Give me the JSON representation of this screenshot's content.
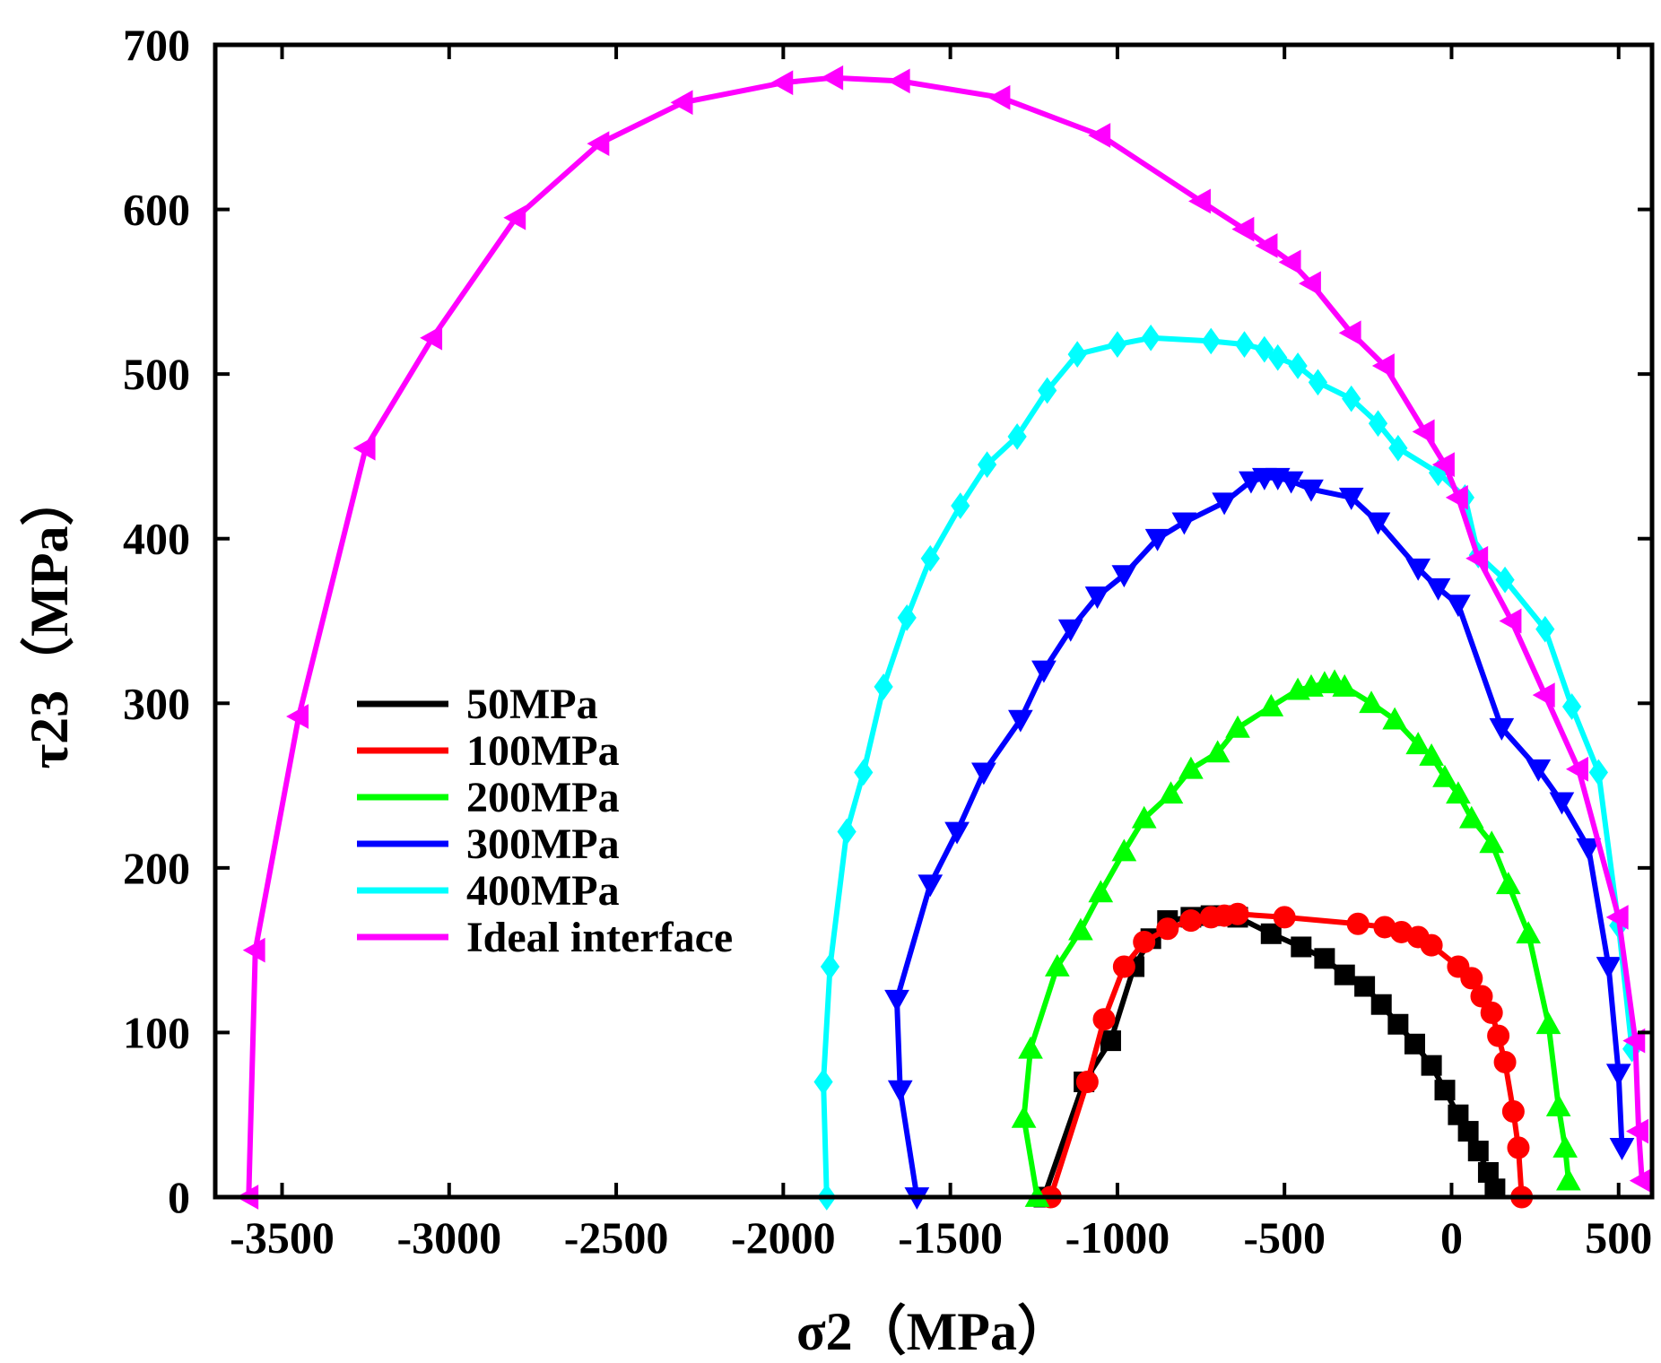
{
  "chart_data": {
    "type": "line",
    "title": "",
    "xlabel": "σ2（MPa）",
    "ylabel": "τ23（MPa）",
    "xlim": [
      -3700,
      600
    ],
    "ylim": [
      0,
      700
    ],
    "grid": false,
    "legend_position": "left-middle",
    "xticks": [
      {
        "value": -3500,
        "label": "-3500"
      },
      {
        "value": -3000,
        "label": "-3000"
      },
      {
        "value": -2500,
        "label": "-2500"
      },
      {
        "value": -2000,
        "label": "-2000"
      },
      {
        "value": -1500,
        "label": "-1500"
      },
      {
        "value": -1000,
        "label": "-1000"
      },
      {
        "value": -500,
        "label": "-500"
      },
      {
        "value": 0,
        "label": "0"
      },
      {
        "value": 500,
        "label": "500"
      }
    ],
    "yticks": [
      {
        "value": 0,
        "label": "0"
      },
      {
        "value": 100,
        "label": "100"
      },
      {
        "value": 200,
        "label": "200"
      },
      {
        "value": 300,
        "label": "300"
      },
      {
        "value": 400,
        "label": "400"
      },
      {
        "value": 500,
        "label": "500"
      },
      {
        "value": 600,
        "label": "600"
      },
      {
        "value": 700,
        "label": "700"
      }
    ],
    "series": [
      {
        "name": "50MPa",
        "color": "#000000",
        "marker": "square",
        "x": [
          -1220,
          -1100,
          -1020,
          -950,
          -900,
          -850,
          -780,
          -720,
          -680,
          -640,
          -540,
          -450,
          -380,
          -320,
          -260,
          -210,
          -160,
          -110,
          -60,
          -20,
          20,
          50,
          80,
          110,
          130
        ],
        "y": [
          0,
          70,
          95,
          140,
          157,
          168,
          170,
          171,
          171,
          170,
          160,
          152,
          145,
          135,
          128,
          117,
          105,
          93,
          80,
          65,
          50,
          40,
          28,
          15,
          5
        ]
      },
      {
        "name": "100MPa",
        "color": "#ff0000",
        "marker": "circle",
        "x": [
          -1200,
          -1090,
          -1040,
          -980,
          -920,
          -850,
          -780,
          -720,
          -680,
          -640,
          -500,
          -280,
          -200,
          -150,
          -100,
          -60,
          20,
          60,
          90,
          120,
          140,
          160,
          185,
          200,
          210
        ],
        "y": [
          0,
          70,
          108,
          140,
          155,
          163,
          168,
          170,
          171,
          172,
          170,
          166,
          164,
          161,
          158,
          153,
          140,
          133,
          122,
          112,
          98,
          82,
          52,
          30,
          0
        ]
      },
      {
        "name": "200MPa",
        "color": "#00ff00",
        "marker": "up-triangle",
        "x": [
          -1240,
          -1280,
          -1260,
          -1180,
          -1110,
          -1050,
          -980,
          -920,
          -840,
          -780,
          -700,
          -640,
          -540,
          -460,
          -420,
          -380,
          -350,
          -320,
          -240,
          -170,
          -100,
          -60,
          -20,
          20,
          60,
          120,
          170,
          230,
          290,
          320,
          340,
          350
        ],
        "y": [
          0,
          48,
          90,
          140,
          162,
          185,
          210,
          230,
          245,
          260,
          270,
          285,
          298,
          308,
          310,
          312,
          313,
          310,
          300,
          290,
          275,
          268,
          255,
          245,
          230,
          215,
          190,
          160,
          105,
          55,
          30,
          10
        ]
      },
      {
        "name": "300MPa",
        "color": "#0000ff",
        "marker": "down-triangle",
        "x": [
          -1600,
          -1650,
          -1660,
          -1560,
          -1480,
          -1400,
          -1290,
          -1220,
          -1140,
          -1060,
          -980,
          -880,
          -800,
          -680,
          -600,
          -560,
          -520,
          -480,
          -420,
          -300,
          -220,
          -100,
          -40,
          20,
          150,
          260,
          330,
          410,
          470,
          500,
          510
        ],
        "y": [
          0,
          65,
          120,
          190,
          222,
          258,
          290,
          320,
          345,
          365,
          378,
          400,
          410,
          422,
          435,
          437,
          437,
          435,
          430,
          425,
          410,
          382,
          370,
          360,
          285,
          260,
          240,
          212,
          140,
          75,
          30
        ]
      },
      {
        "name": "400MPa",
        "color": "#00ffff",
        "marker": "diamond",
        "x": [
          -1870,
          -1880,
          -1860,
          -1810,
          -1760,
          -1700,
          -1630,
          -1560,
          -1470,
          -1390,
          -1300,
          -1210,
          -1120,
          -1000,
          -900,
          -720,
          -620,
          -560,
          -520,
          -460,
          -400,
          -300,
          -220,
          -160,
          -40,
          40,
          80,
          160,
          280,
          360,
          440,
          500,
          540
        ],
        "y": [
          0,
          70,
          140,
          222,
          258,
          310,
          352,
          388,
          420,
          445,
          462,
          490,
          512,
          518,
          522,
          520,
          518,
          515,
          510,
          505,
          495,
          485,
          470,
          455,
          440,
          425,
          390,
          375,
          345,
          298,
          258,
          165,
          90
        ]
      },
      {
        "name": "Ideal interface",
        "color": "#ff00ff",
        "marker": "left-triangle",
        "x": [
          -3600,
          -3580,
          -3450,
          -3250,
          -3050,
          -2800,
          -2550,
          -2300,
          -2000,
          -1850,
          -1650,
          -1350,
          -1050,
          -750,
          -620,
          -550,
          -480,
          -420,
          -300,
          -200,
          -80,
          -20,
          20,
          80,
          180,
          280,
          380,
          500,
          550,
          560,
          570
        ],
        "y": [
          0,
          150,
          292,
          455,
          522,
          595,
          640,
          665,
          677,
          680,
          678,
          668,
          645,
          605,
          588,
          578,
          568,
          555,
          525,
          505,
          465,
          445,
          425,
          388,
          350,
          305,
          260,
          170,
          95,
          40,
          10
        ]
      }
    ]
  }
}
